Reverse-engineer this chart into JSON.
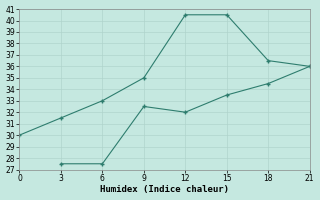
{
  "line1_x": [
    0,
    3,
    6,
    9,
    12,
    15,
    18,
    21
  ],
  "line1_y": [
    30,
    31.5,
    33,
    35,
    40.5,
    40.5,
    36.5,
    36
  ],
  "line2_x": [
    3,
    6,
    9,
    12,
    15,
    18,
    21
  ],
  "line2_y": [
    27.5,
    27.5,
    32.5,
    32,
    33.5,
    34.5,
    36
  ],
  "line_color": "#2e7d6e",
  "bg_color": "#c5e8e0",
  "grid_color": "#b0d4cc",
  "xlabel": "Humidex (Indice chaleur)",
  "xlim": [
    0,
    21
  ],
  "ylim": [
    27,
    41
  ],
  "xticks": [
    0,
    3,
    6,
    9,
    12,
    15,
    18,
    21
  ],
  "yticks": [
    27,
    28,
    29,
    30,
    31,
    32,
    33,
    34,
    35,
    36,
    37,
    38,
    39,
    40,
    41
  ],
  "marker": "+"
}
